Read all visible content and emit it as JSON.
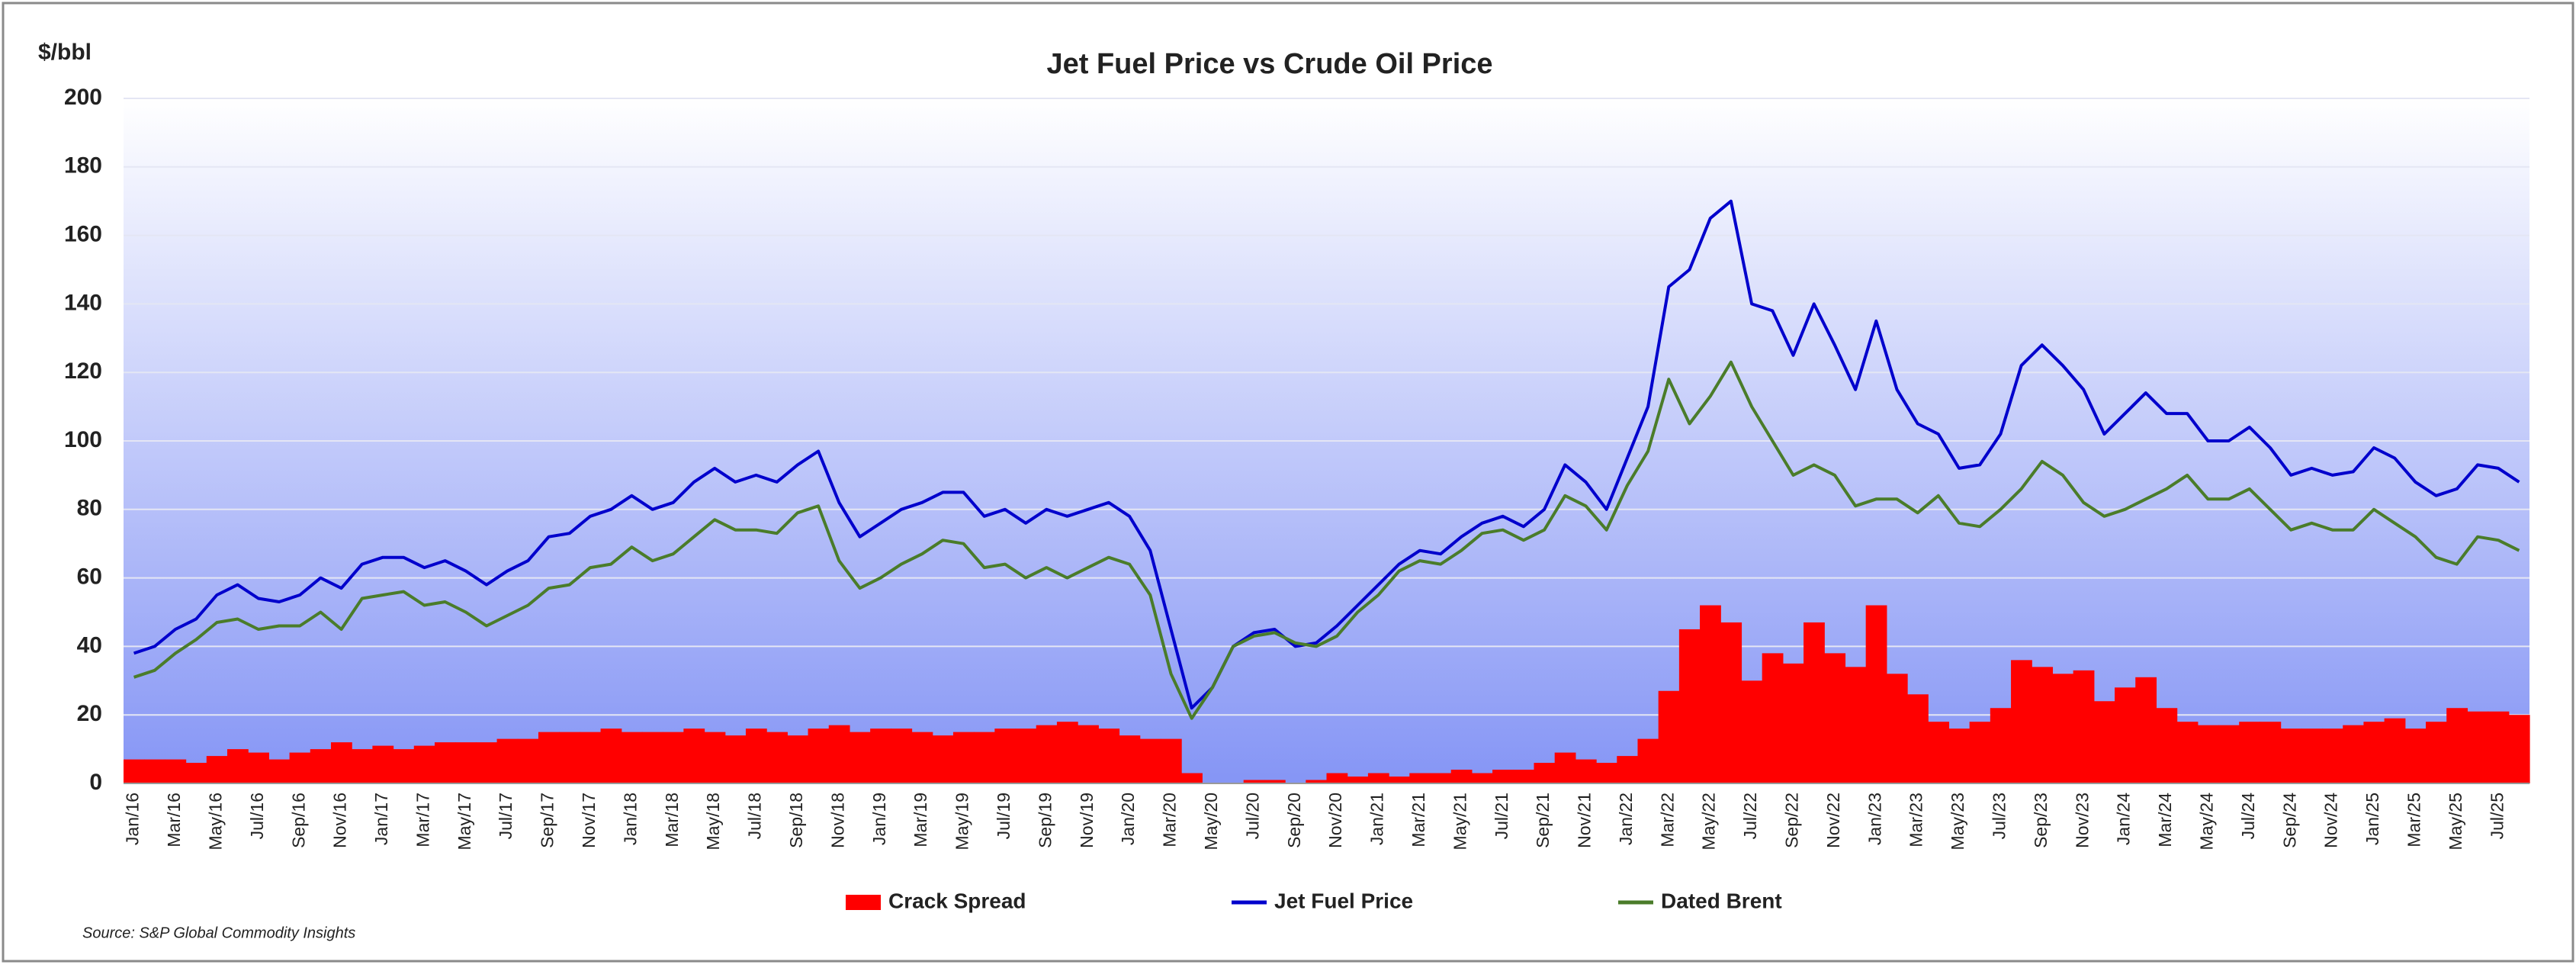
{
  "chart_data": {
    "type": "combo",
    "title": "Jet Fuel Price vs Crude Oil Price",
    "y_label": "$/bbl",
    "source": "Source:  S&P Global Commodity Insights",
    "categories": [
      "Jan/16",
      null,
      "Mar/16",
      null,
      "May/16",
      null,
      "Jul/16",
      null,
      "Sep/16",
      null,
      "Nov/16",
      null,
      "Jan/17",
      null,
      "Mar/17",
      null,
      "May/17",
      null,
      "Jul/17",
      null,
      "Sep/17",
      null,
      "Nov/17",
      null,
      "Jan/18",
      null,
      "Mar/18",
      null,
      "May/18",
      null,
      "Jul/18",
      null,
      "Sep/18",
      null,
      "Nov/18",
      null,
      "Jan/19",
      null,
      "Mar/19",
      null,
      "May/19",
      null,
      "Jul/19",
      null,
      "Sep/19",
      null,
      "Nov/19",
      null,
      "Jan/20",
      null,
      "Mar/20",
      null,
      "May/20",
      null,
      "Jul/20",
      null,
      "Sep/20",
      null,
      "Nov/20",
      null,
      "Jan/21",
      null,
      "Mar/21",
      null,
      "May/21",
      null,
      "Jul/21",
      null,
      "Sep/21",
      null,
      "Nov/21",
      null,
      "Jan/22",
      null,
      "Mar/22",
      null,
      "May/22",
      null,
      "Jul/22",
      null,
      "Sep/22",
      null,
      "Nov/22",
      null,
      "Jan/23",
      null,
      "Mar/23",
      null,
      "May/23",
      null,
      "Jul/23",
      null,
      "Sep/23",
      null,
      "Nov/23",
      null,
      "Jan/24",
      null,
      "Mar/24",
      null,
      "May/24",
      null,
      "Jul/24",
      null,
      "Sep/24",
      null,
      "Nov/24",
      null,
      "Jan/25",
      null,
      "Mar/25",
      null,
      "May/25",
      null,
      "Jul/25",
      null
    ],
    "series": [
      {
        "name": "Crack Spread",
        "type": "bar",
        "color": "#ff0000",
        "values": [
          7,
          7,
          7,
          6,
          8,
          10,
          9,
          7,
          9,
          10,
          12,
          10,
          11,
          10,
          11,
          12,
          12,
          12,
          13,
          13,
          15,
          15,
          15,
          16,
          15,
          15,
          15,
          16,
          15,
          14,
          16,
          15,
          14,
          16,
          17,
          15,
          16,
          16,
          15,
          14,
          15,
          15,
          16,
          16,
          17,
          18,
          17,
          16,
          14,
          13,
          13,
          3,
          0,
          0,
          1,
          1,
          0,
          1,
          3,
          2,
          3,
          2,
          3,
          3,
          4,
          3,
          4,
          4,
          6,
          9,
          7,
          6,
          8,
          13,
          27,
          45,
          52,
          47,
          30,
          38,
          35,
          47,
          38,
          34,
          52,
          32,
          26,
          18,
          16,
          18,
          22,
          36,
          34,
          32,
          33,
          24,
          28,
          31,
          22,
          18,
          17,
          17,
          18,
          18,
          16,
          16,
          16,
          17,
          18,
          19,
          16,
          18,
          22,
          21,
          21,
          20
        ]
      },
      {
        "name": "Jet Fuel Price",
        "type": "line",
        "color": "#0000cc",
        "values": [
          38,
          40,
          45,
          48,
          55,
          58,
          54,
          53,
          55,
          60,
          57,
          64,
          66,
          66,
          63,
          65,
          62,
          58,
          62,
          65,
          72,
          73,
          78,
          80,
          84,
          80,
          82,
          88,
          92,
          88,
          90,
          88,
          93,
          97,
          82,
          72,
          76,
          80,
          82,
          85,
          85,
          78,
          80,
          76,
          80,
          78,
          80,
          82,
          78,
          68,
          45,
          22,
          28,
          40,
          44,
          45,
          40,
          41,
          46,
          52,
          58,
          64,
          68,
          67,
          72,
          76,
          78,
          75,
          80,
          93,
          88,
          80,
          95,
          110,
          145,
          150,
          165,
          170,
          140,
          138,
          125,
          140,
          128,
          115,
          135,
          115,
          105,
          102,
          92,
          93,
          102,
          122,
          128,
          122,
          115,
          102,
          108,
          114,
          108,
          108,
          100,
          100,
          104,
          98,
          90,
          92,
          90,
          91,
          98,
          95,
          88,
          84,
          86,
          93,
          92,
          88
        ]
      },
      {
        "name": "Dated Brent",
        "type": "line",
        "color": "#4a7c2a",
        "values": [
          31,
          33,
          38,
          42,
          47,
          48,
          45,
          46,
          46,
          50,
          45,
          54,
          55,
          56,
          52,
          53,
          50,
          46,
          49,
          52,
          57,
          58,
          63,
          64,
          69,
          65,
          67,
          72,
          77,
          74,
          74,
          73,
          79,
          81,
          65,
          57,
          60,
          64,
          67,
          71,
          70,
          63,
          64,
          60,
          63,
          60,
          63,
          66,
          64,
          55,
          32,
          19,
          28,
          40,
          43,
          44,
          41,
          40,
          43,
          50,
          55,
          62,
          65,
          64,
          68,
          73,
          74,
          71,
          74,
          84,
          81,
          74,
          87,
          97,
          118,
          105,
          113,
          123,
          110,
          100,
          90,
          93,
          90,
          81,
          83,
          83,
          79,
          84,
          76,
          75,
          80,
          86,
          94,
          90,
          82,
          78,
          80,
          83,
          86,
          90,
          83,
          83,
          86,
          80,
          74,
          76,
          74,
          74,
          80,
          76,
          72,
          66,
          64,
          72,
          71,
          68
        ]
      }
    ],
    "ylim": [
      0,
      200
    ],
    "yticks": [
      0,
      20,
      40,
      60,
      80,
      100,
      120,
      140,
      160,
      180,
      200
    ],
    "grid": true
  }
}
